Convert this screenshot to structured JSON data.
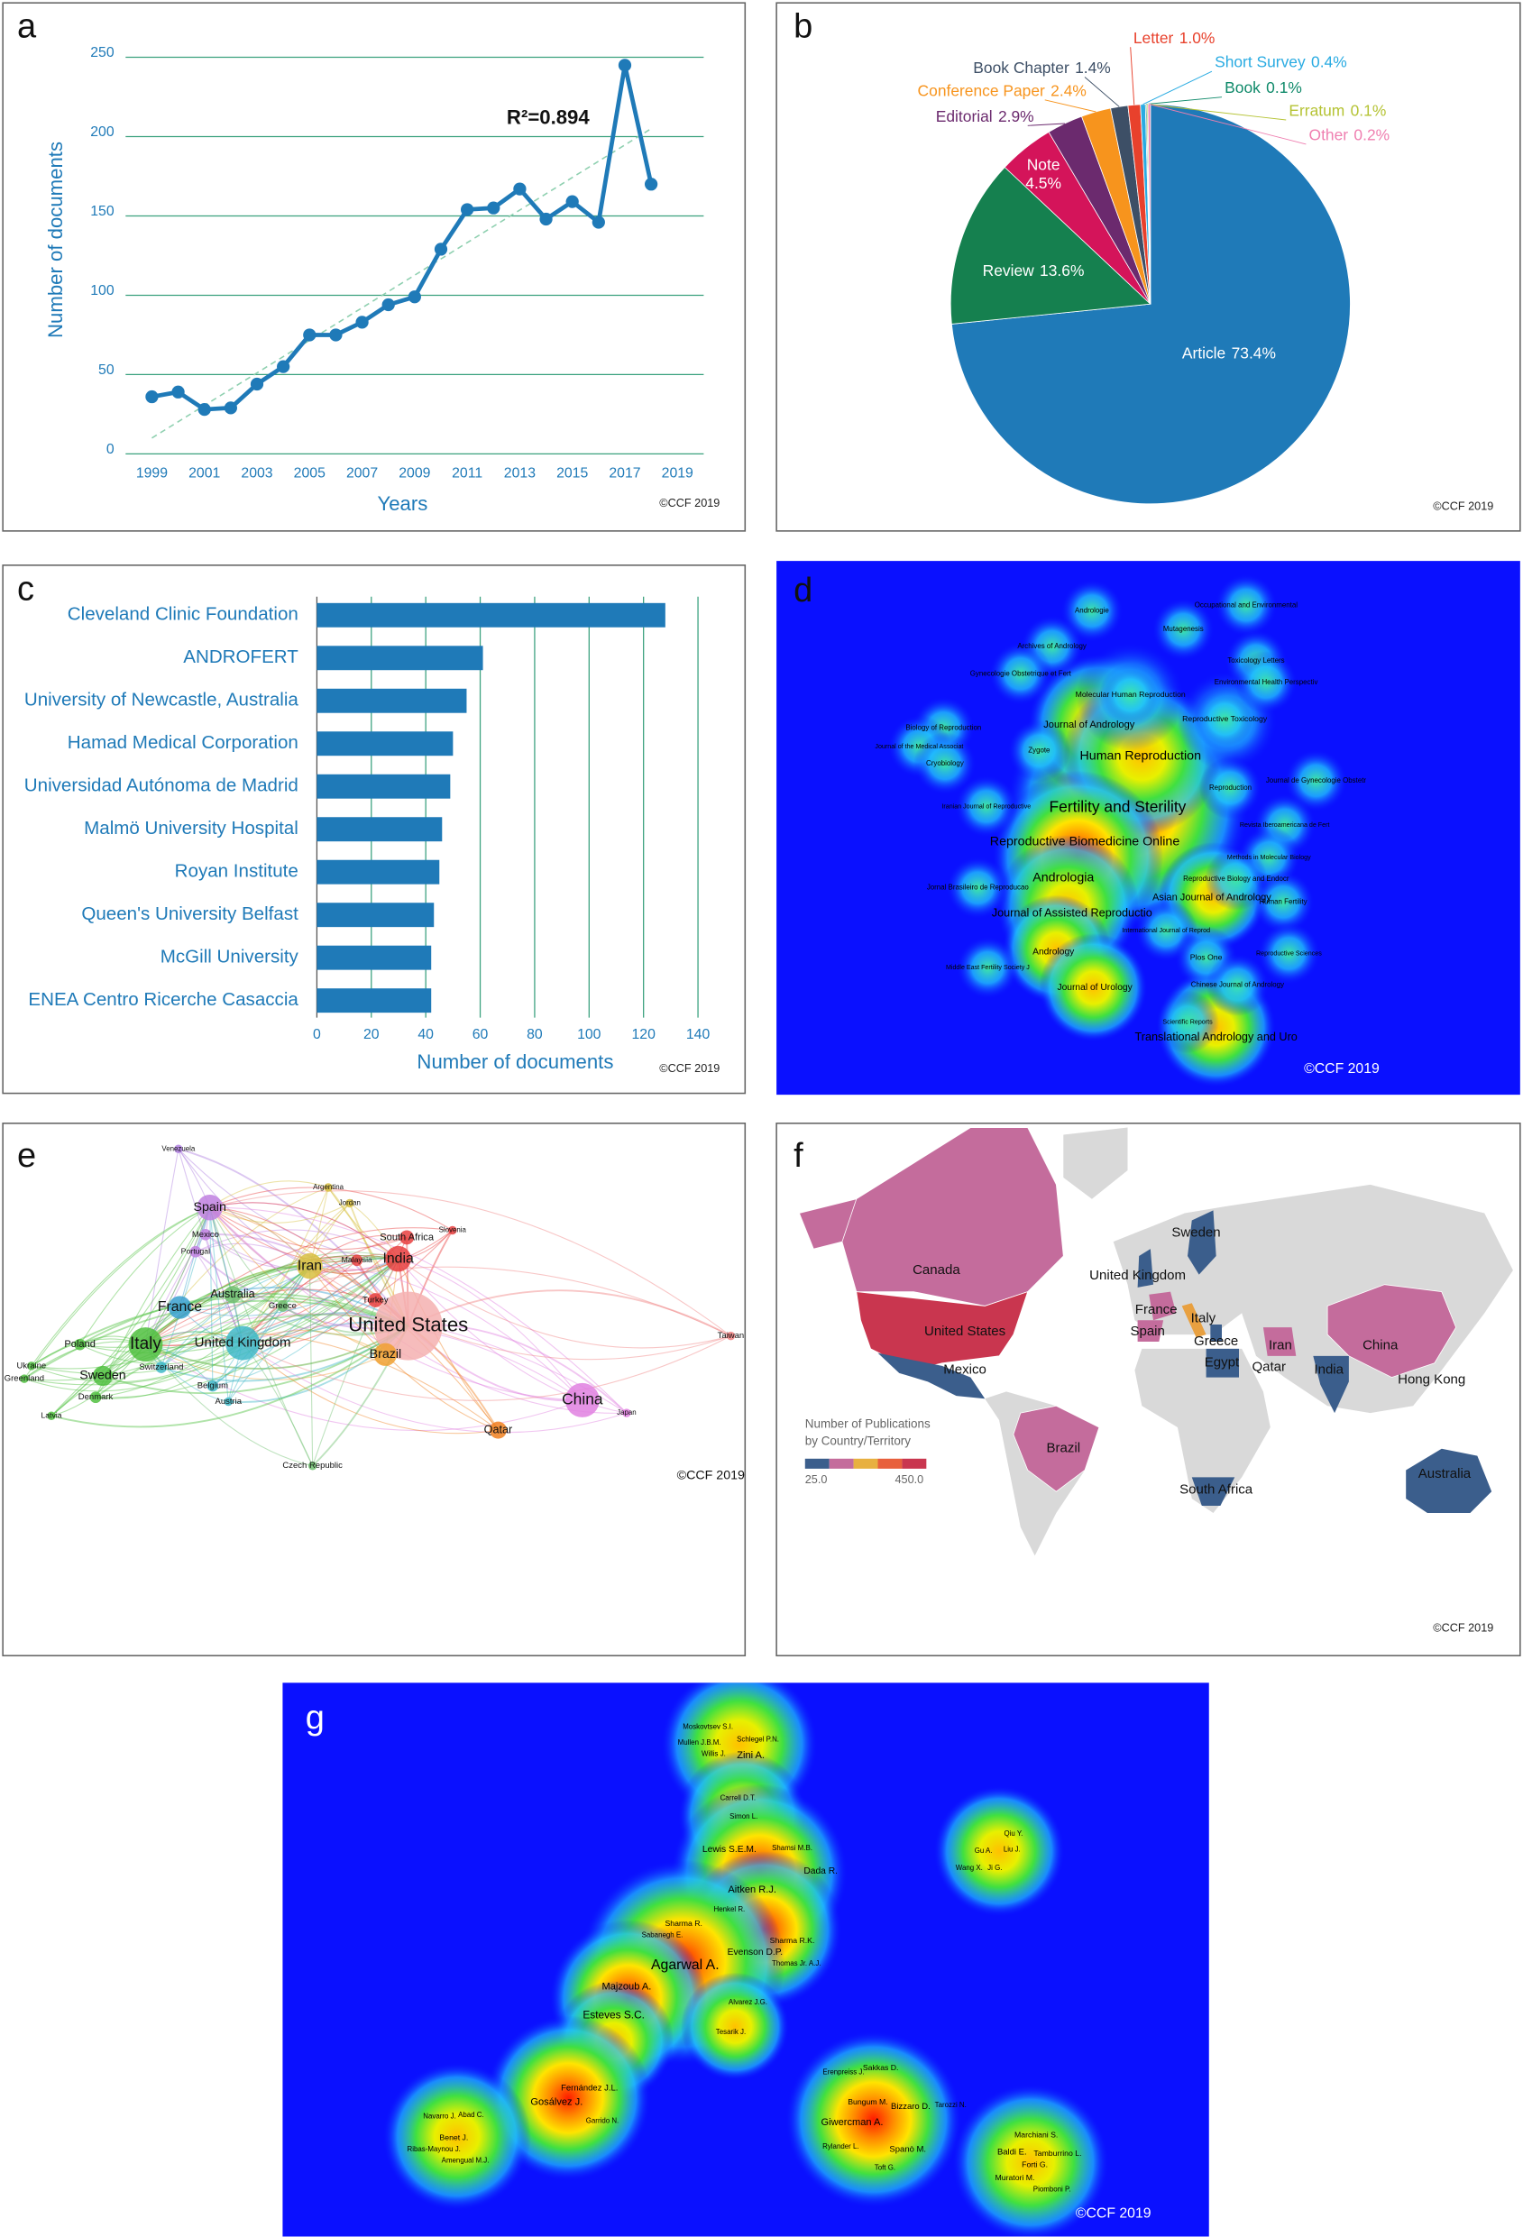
{
  "chart_data": [
    {
      "type": "line",
      "panel": "a",
      "x": [
        1999,
        2000,
        2001,
        2002,
        2003,
        2004,
        2005,
        2006,
        2007,
        2008,
        2009,
        2010,
        2011,
        2012,
        2013,
        2014,
        2015,
        2016,
        2017,
        2018
      ],
      "values": [
        36,
        39,
        28,
        29,
        44,
        55,
        75,
        75,
        83,
        94,
        99,
        129,
        154,
        155,
        167,
        148,
        159,
        146,
        245,
        170
      ],
      "color": "#1f7ab8",
      "xlim": [
        1998,
        2020
      ],
      "xticks": [
        1999,
        2001,
        2003,
        2005,
        2007,
        2009,
        2011,
        2013,
        2015,
        2017,
        2019
      ],
      "ylim": [
        0,
        260
      ],
      "yticks": [
        0,
        50,
        100,
        150,
        200,
        250
      ],
      "grid": true,
      "x_label": "Years",
      "y_label": "Number of documents",
      "annotation": "R²=0.894",
      "trendline": {
        "x": [
          1999,
          2018
        ],
        "values": [
          10,
          205
        ],
        "color": "#8fd0b0"
      },
      "credit": "©CCF 2019"
    },
    {
      "type": "pie",
      "panel": "b",
      "categories": [
        "Article",
        "Review",
        "Note",
        "Editorial",
        "Conference Paper",
        "Book Chapter",
        "Letter",
        "Short Survey",
        "Book",
        "Erratum",
        "Other"
      ],
      "values": [
        73.4,
        13.6,
        4.5,
        2.9,
        2.4,
        1.4,
        1.0,
        0.4,
        0.1,
        0.1,
        0.2
      ],
      "value_labels": [
        "73.4%",
        "13.6%",
        "4.5%",
        "2.9%",
        "2.4%",
        "1.4%",
        "1.0%",
        "0.4%",
        "0.1%",
        "0.1%",
        "0.2%"
      ],
      "colors": [
        "#1f7ab8",
        "#15804f",
        "#d4145a",
        "#6b2a6e",
        "#f7941d",
        "#3d4f66",
        "#e8412c",
        "#29abe2",
        "#0f8a6a",
        "#b5c334",
        "#ef7fb0"
      ],
      "credit": "©CCF 2019"
    },
    {
      "type": "bar",
      "orientation": "horizontal",
      "panel": "c",
      "categories": [
        "Cleveland Clinic Foundation",
        "ANDROFERT",
        "University of Newcastle, Australia",
        "Hamad Medical Corporation",
        "Universidad Autónoma de Madrid",
        "Malmö University Hospital",
        "Royan Institute",
        "Queen's University Belfast",
        "McGill University",
        "ENEA Centro Ricerche Casaccia"
      ],
      "values": [
        128,
        61,
        55,
        50,
        49,
        46,
        45,
        43,
        42,
        42
      ],
      "color": "#1f7ab8",
      "xlim": [
        0,
        140
      ],
      "xticks": [
        0,
        20,
        40,
        60,
        80,
        100,
        120,
        140
      ],
      "grid": true,
      "x_label": "Number of documents",
      "credit": "©CCF 2019"
    }
  ],
  "heatmap_d": {
    "panel": "d",
    "labels": [
      "Occupational and Environmental",
      "Andrologie",
      "Mutagenesis",
      "Archives of Andrology",
      "Toxicology Letters",
      "Gynecologie Obstetrique et Fert",
      "Environmental Health Perspectiv",
      "Molecular Human Reproduction",
      "Reproductive Toxicology",
      "Journal of Andrology",
      "Biology of Reproduction",
      "Journal of the Medical Associat",
      "Zygote",
      "Human Reproduction",
      "Cryobiology",
      "Reproduction",
      "Journal de Gynecologie Obstetr",
      "Fertility and Sterility",
      "Iranian Journal of Reproductive",
      "Revista Iberoamericana de Fert",
      "Reproductive Biomedicine Online",
      "Methods in Molecular Biology",
      "Reproductive Biology and Endocr",
      "Andrologia",
      "Jornal Brasileiro de Reproducao",
      "Asian Journal of Andrology",
      "Human Fertility",
      "Journal of Assisted Reproductio",
      "International Journal of Reprod",
      "Andrology",
      "Plos One",
      "Reproductive Sciences",
      "Middle East Fertility Society J",
      "Journal of Urology",
      "Chinese Journal of Andrology",
      "Scientific Reports",
      "Translational Andrology and Uro"
    ],
    "credit": "©CCF 2019"
  },
  "network_e": {
    "panel": "e",
    "labels": [
      "Venezuela",
      "Spain",
      "Argentina",
      "Jordan",
      "Mexico",
      "South Africa",
      "Slovenia",
      "Portugal",
      "Iran",
      "Malaysia",
      "India",
      "Australia",
      "France",
      "Greece",
      "Turkey",
      "United States",
      "United Kingdom",
      "Italy",
      "Poland",
      "Brazil",
      "Ukraine",
      "Switzerland",
      "Greenland",
      "Sweden",
      "Belgium",
      "China",
      "Denmark",
      "Austria",
      "Japan",
      "Latvia",
      "Qatar",
      "Czech Republic",
      "Taiwan"
    ],
    "credit": "©CCF 2019"
  },
  "map_f": {
    "panel": "f",
    "labels": [
      "Canada",
      "Sweden",
      "United Kingdom",
      "France",
      "Italy",
      "Spain",
      "United States",
      "Greece",
      "Iran",
      "China",
      "Egypt",
      "Qatar",
      "India",
      "Mexico",
      "Hong Kong",
      "Brazil",
      "South Africa",
      "Australia"
    ],
    "legend_title": [
      "Number of Publications",
      "by Country/Territory"
    ],
    "legend_min": "25.0",
    "legend_max": "450.0",
    "credit": "©CCF 2019"
  },
  "heatmap_g": {
    "panel": "g",
    "labels": [
      "Moskovtsev S.I.",
      "Schlegel P.N.",
      "Mullen J.B.M.",
      "Willis J.",
      "Zini A.",
      "Carrell D.T.",
      "Simon L.",
      "Shamsi M.B.",
      "Lewis S.E.M.",
      "Dada R.",
      "Aitken R.J.",
      "Henkel R.",
      "Sharma R.",
      "Sabanegh E.",
      "Sharma R.K.",
      "Evenson D.P.",
      "Thomas Jr. A.J.",
      "Agarwal A.",
      "Majzoub A.",
      "Alvarez J.G.",
      "Esteves S.C.",
      "Tesarik J.",
      "Fernández J.L.",
      "Gosálvez J.",
      "Garrido N.",
      "Navarro J.",
      "Abad C.",
      "Benet J.",
      "Ribas-Maynou J.",
      "Amengual M.J.",
      "Erenpreiss J.",
      "Sakkas D.",
      "Bungum M.",
      "Bizzaro D.",
      "Tarozzi N.",
      "Giwercman A.",
      "Rylander L.",
      "Spanò M.",
      "Toft G.",
      "Marchiani S.",
      "Baldi E.",
      "Tamburrino L.",
      "Forti G.",
      "Muratori M.",
      "Piomboni P.",
      "Qiu Y.",
      "Gu A.",
      "Liu J.",
      "Wang X.",
      "Ji G."
    ],
    "credit": "©CCF 2019"
  }
}
